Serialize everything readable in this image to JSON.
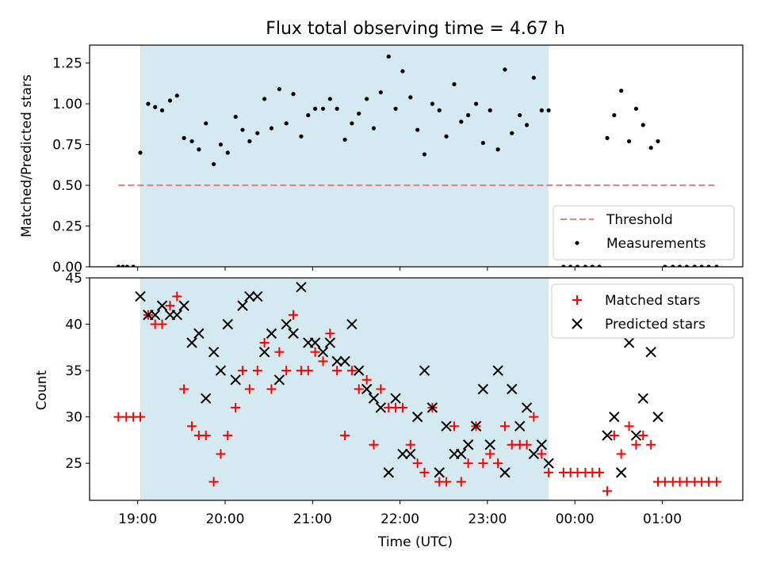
{
  "chart_data": [
    {
      "type": "scatter",
      "title": "Flux total observing time = 4.67 h",
      "ylabel": "Matched/Predicted stars",
      "xlabel": "",
      "x_unit": "hours (UTC clock, values past 24 are after midnight)",
      "xlim": [
        18.45,
        25.92
      ],
      "ylim": [
        0,
        1.36
      ],
      "yticks": [
        0.0,
        0.25,
        0.5,
        0.75,
        1.0,
        1.25
      ],
      "ytick_labels": [
        "0.00",
        "0.25",
        "0.50",
        "0.75",
        "1.00",
        "1.25"
      ],
      "shaded_span": [
        19.03,
        23.7
      ],
      "shaded_color": "#d4eaf0",
      "threshold": {
        "name": "Threshold",
        "y": 0.5,
        "x_range": [
          18.78,
          25.62
        ],
        "color": "#f08080"
      },
      "series": [
        {
          "name": "Measurements",
          "color": "#000000",
          "points": [
            [
              18.78,
              0.0
            ],
            [
              18.83,
              0.0
            ],
            [
              18.88,
              0.0
            ],
            [
              18.95,
              0.0
            ],
            [
              19.03,
              0.7
            ],
            [
              19.12,
              1.0
            ],
            [
              19.2,
              0.98
            ],
            [
              19.28,
              0.96
            ],
            [
              19.37,
              1.02
            ],
            [
              19.45,
              1.05
            ],
            [
              19.53,
              0.79
            ],
            [
              19.62,
              0.77
            ],
            [
              19.7,
              0.72
            ],
            [
              19.78,
              0.88
            ],
            [
              19.87,
              0.63
            ],
            [
              19.95,
              0.75
            ],
            [
              20.03,
              0.7
            ],
            [
              20.12,
              0.92
            ],
            [
              20.2,
              0.84
            ],
            [
              20.28,
              0.77
            ],
            [
              20.37,
              0.82
            ],
            [
              20.45,
              1.03
            ],
            [
              20.53,
              0.85
            ],
            [
              20.62,
              1.09
            ],
            [
              20.7,
              0.88
            ],
            [
              20.78,
              1.06
            ],
            [
              20.87,
              0.8
            ],
            [
              20.95,
              0.93
            ],
            [
              21.03,
              0.97
            ],
            [
              21.12,
              0.97
            ],
            [
              21.2,
              1.03
            ],
            [
              21.28,
              0.97
            ],
            [
              21.37,
              0.78
            ],
            [
              21.45,
              0.88
            ],
            [
              21.53,
              0.94
            ],
            [
              21.62,
              1.03
            ],
            [
              21.7,
              0.85
            ],
            [
              21.78,
              1.07
            ],
            [
              21.87,
              1.29
            ],
            [
              21.95,
              0.97
            ],
            [
              22.03,
              1.2
            ],
            [
              22.12,
              1.04
            ],
            [
              22.2,
              0.84
            ],
            [
              22.28,
              0.69
            ],
            [
              22.37,
              1.0
            ],
            [
              22.45,
              0.96
            ],
            [
              22.53,
              0.8
            ],
            [
              22.62,
              1.12
            ],
            [
              22.7,
              0.89
            ],
            [
              22.78,
              0.93
            ],
            [
              22.87,
              1.0
            ],
            [
              22.95,
              0.76
            ],
            [
              23.03,
              0.96
            ],
            [
              23.12,
              0.72
            ],
            [
              23.2,
              1.21
            ],
            [
              23.28,
              0.82
            ],
            [
              23.37,
              0.93
            ],
            [
              23.45,
              0.87
            ],
            [
              23.53,
              1.16
            ],
            [
              23.62,
              0.96
            ],
            [
              23.7,
              0.96
            ],
            [
              23.87,
              0.0
            ],
            [
              23.95,
              0.0
            ],
            [
              24.03,
              0.0
            ],
            [
              24.12,
              0.0
            ],
            [
              24.2,
              0.0
            ],
            [
              24.28,
              0.0
            ],
            [
              24.37,
              0.79
            ],
            [
              24.45,
              0.93
            ],
            [
              24.53,
              1.08
            ],
            [
              24.62,
              0.77
            ],
            [
              24.7,
              0.97
            ],
            [
              24.78,
              0.87
            ],
            [
              24.87,
              0.73
            ],
            [
              24.95,
              0.77
            ],
            [
              25.03,
              0.0
            ],
            [
              25.12,
              0.0
            ],
            [
              25.2,
              0.0
            ],
            [
              25.28,
              0.0
            ],
            [
              25.37,
              0.0
            ],
            [
              25.45,
              0.0
            ],
            [
              25.53,
              0.0
            ],
            [
              25.62,
              0.0
            ]
          ]
        }
      ],
      "legend": {
        "placement": "lower-right",
        "entries": [
          "Threshold",
          "Measurements"
        ]
      }
    },
    {
      "type": "scatter",
      "title": "",
      "ylabel": "Count",
      "xlabel": "Time (UTC)",
      "x_unit": "hours (UTC clock, values past 24 are after midnight)",
      "xlim": [
        18.45,
        25.92
      ],
      "ylim": [
        21.0,
        45.0
      ],
      "yticks": [
        25,
        30,
        35,
        40,
        45
      ],
      "ytick_labels": [
        "25",
        "30",
        "35",
        "40",
        "45"
      ],
      "xticks": [
        19,
        20,
        21,
        22,
        23,
        24,
        25
      ],
      "xtick_labels": [
        "19:00",
        "20:00",
        "21:00",
        "22:00",
        "23:00",
        "00:00",
        "01:00"
      ],
      "shaded_span": [
        19.03,
        23.7
      ],
      "shaded_color": "#d4eaf0",
      "series": [
        {
          "name": "Matched stars",
          "marker": "plus",
          "color": "#ff0000",
          "points": [
            [
              18.78,
              30
            ],
            [
              18.87,
              30
            ],
            [
              18.95,
              30
            ],
            [
              19.03,
              30
            ],
            [
              19.12,
              41
            ],
            [
              19.2,
              40
            ],
            [
              19.28,
              40
            ],
            [
              19.37,
              42
            ],
            [
              19.45,
              43
            ],
            [
              19.53,
              33
            ],
            [
              19.62,
              29
            ],
            [
              19.7,
              28
            ],
            [
              19.78,
              28
            ],
            [
              19.87,
              23
            ],
            [
              19.95,
              26
            ],
            [
              20.03,
              28
            ],
            [
              20.12,
              31
            ],
            [
              20.2,
              35
            ],
            [
              20.28,
              33
            ],
            [
              20.37,
              35
            ],
            [
              20.45,
              38
            ],
            [
              20.53,
              33
            ],
            [
              20.62,
              37
            ],
            [
              20.7,
              35
            ],
            [
              20.78,
              41
            ],
            [
              20.87,
              35
            ],
            [
              20.95,
              35
            ],
            [
              21.03,
              37
            ],
            [
              21.12,
              36
            ],
            [
              21.2,
              39
            ],
            [
              21.28,
              35
            ],
            [
              21.37,
              28
            ],
            [
              21.45,
              35
            ],
            [
              21.53,
              33
            ],
            [
              21.62,
              34
            ],
            [
              21.7,
              27
            ],
            [
              21.78,
              33
            ],
            [
              21.87,
              31
            ],
            [
              21.95,
              31
            ],
            [
              22.03,
              31
            ],
            [
              22.12,
              27
            ],
            [
              22.2,
              25
            ],
            [
              22.28,
              24
            ],
            [
              22.37,
              31
            ],
            [
              22.45,
              23
            ],
            [
              22.53,
              23
            ],
            [
              22.62,
              29
            ],
            [
              22.7,
              23
            ],
            [
              22.78,
              25
            ],
            [
              22.87,
              29
            ],
            [
              22.95,
              25
            ],
            [
              23.03,
              26
            ],
            [
              23.12,
              25
            ],
            [
              23.2,
              29
            ],
            [
              23.28,
              27
            ],
            [
              23.37,
              27
            ],
            [
              23.45,
              27
            ],
            [
              23.53,
              30
            ],
            [
              23.62,
              26
            ],
            [
              23.7,
              24
            ],
            [
              23.87,
              24
            ],
            [
              23.95,
              24
            ],
            [
              24.03,
              24
            ],
            [
              24.12,
              24
            ],
            [
              24.2,
              24
            ],
            [
              24.28,
              24
            ],
            [
              24.37,
              22
            ],
            [
              24.45,
              28
            ],
            [
              24.53,
              26
            ],
            [
              24.62,
              29
            ],
            [
              24.7,
              27
            ],
            [
              24.78,
              28
            ],
            [
              24.87,
              27
            ],
            [
              24.95,
              23
            ],
            [
              25.03,
              23
            ],
            [
              25.12,
              23
            ],
            [
              25.2,
              23
            ],
            [
              25.28,
              23
            ],
            [
              25.37,
              23
            ],
            [
              25.45,
              23
            ],
            [
              25.53,
              23
            ],
            [
              25.62,
              23
            ]
          ]
        },
        {
          "name": "Predicted stars",
          "marker": "x",
          "color": "#000000",
          "points": [
            [
              19.03,
              43
            ],
            [
              19.12,
              41
            ],
            [
              19.2,
              41
            ],
            [
              19.28,
              42
            ],
            [
              19.37,
              41
            ],
            [
              19.45,
              41
            ],
            [
              19.53,
              42
            ],
            [
              19.62,
              38
            ],
            [
              19.7,
              39
            ],
            [
              19.78,
              32
            ],
            [
              19.87,
              37
            ],
            [
              19.95,
              35
            ],
            [
              20.03,
              40
            ],
            [
              20.12,
              34
            ],
            [
              20.2,
              42
            ],
            [
              20.28,
              43
            ],
            [
              20.37,
              43
            ],
            [
              20.45,
              37
            ],
            [
              20.53,
              39
            ],
            [
              20.62,
              34
            ],
            [
              20.7,
              40
            ],
            [
              20.78,
              39
            ],
            [
              20.87,
              44
            ],
            [
              20.95,
              38
            ],
            [
              21.03,
              38
            ],
            [
              21.12,
              37
            ],
            [
              21.2,
              38
            ],
            [
              21.28,
              36
            ],
            [
              21.37,
              36
            ],
            [
              21.45,
              40
            ],
            [
              21.53,
              35
            ],
            [
              21.62,
              33
            ],
            [
              21.7,
              32
            ],
            [
              21.78,
              31
            ],
            [
              21.87,
              24
            ],
            [
              21.95,
              32
            ],
            [
              22.03,
              26
            ],
            [
              22.12,
              26
            ],
            [
              22.2,
              30
            ],
            [
              22.28,
              35
            ],
            [
              22.37,
              31
            ],
            [
              22.45,
              24
            ],
            [
              22.53,
              29
            ],
            [
              22.62,
              26
            ],
            [
              22.7,
              26
            ],
            [
              22.78,
              27
            ],
            [
              22.87,
              29
            ],
            [
              22.95,
              33
            ],
            [
              23.03,
              27
            ],
            [
              23.12,
              35
            ],
            [
              23.2,
              24
            ],
            [
              23.28,
              33
            ],
            [
              23.37,
              29
            ],
            [
              23.45,
              31
            ],
            [
              23.53,
              26
            ],
            [
              23.62,
              27
            ],
            [
              23.7,
              25
            ],
            [
              24.37,
              28
            ],
            [
              24.45,
              30
            ],
            [
              24.53,
              24
            ],
            [
              24.62,
              38
            ],
            [
              24.7,
              28
            ],
            [
              24.78,
              32
            ],
            [
              24.87,
              37
            ],
            [
              24.95,
              30
            ]
          ]
        }
      ],
      "legend": {
        "placement": "top-right",
        "entries": [
          "Matched stars",
          "Predicted stars"
        ]
      }
    }
  ]
}
